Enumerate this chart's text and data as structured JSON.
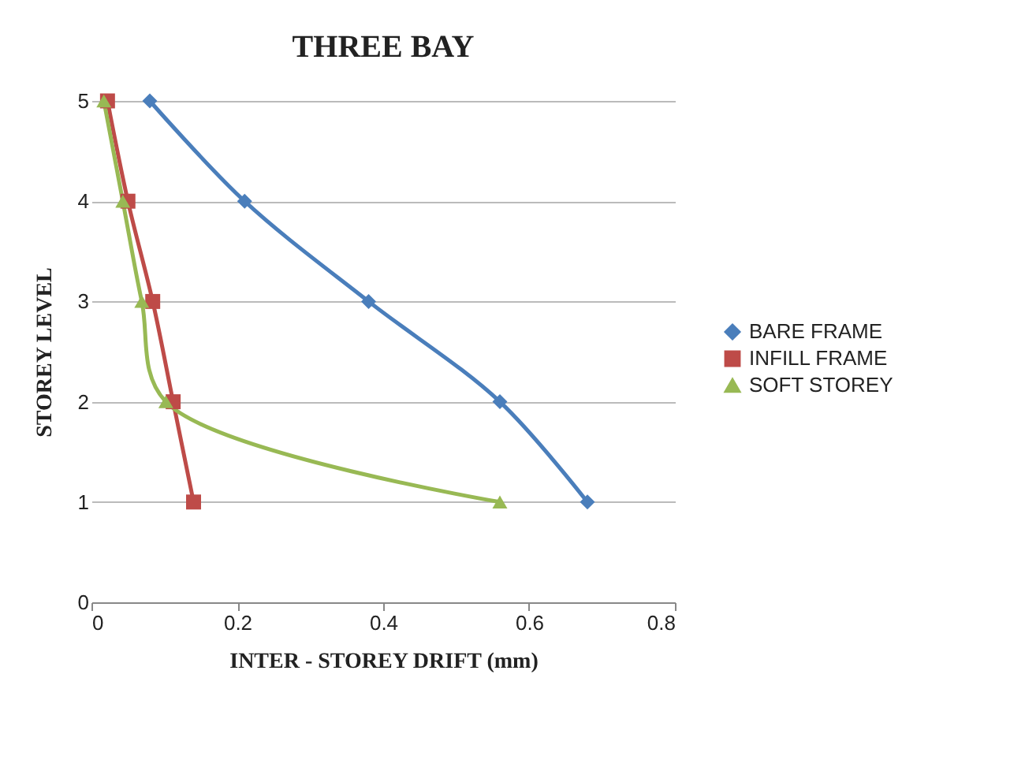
{
  "chart_data": {
    "type": "line",
    "title": "THREE BAY",
    "xlabel": "INTER - STOREY DRIFT (mm)",
    "ylabel": "STOREY LEVEL",
    "xlim": [
      0,
      0.8
    ],
    "xticks": [
      0,
      0.2,
      0.4,
      0.6,
      0.8
    ],
    "ylim": [
      0,
      5
    ],
    "yticks": [
      0,
      1,
      2,
      3,
      4,
      5
    ],
    "grid": "y",
    "legend": "right",
    "series": [
      {
        "name": "BARE FRAME",
        "color": "#4a7ebb",
        "marker": "diamond",
        "x": [
          0.08,
          0.21,
          0.38,
          0.56,
          0.68
        ],
        "values": [
          5,
          4,
          3,
          2,
          1
        ]
      },
      {
        "name": "INFILL FRAME",
        "color": "#be4b48",
        "marker": "square",
        "x": [
          0.022,
          0.05,
          0.084,
          0.112,
          0.14
        ],
        "values": [
          5,
          4,
          3,
          2,
          1
        ]
      },
      {
        "name": "SOFT STOREY",
        "color": "#98b954",
        "marker": "triangle",
        "x": [
          0.017,
          0.043,
          0.069,
          0.102,
          0.56
        ],
        "values": [
          5,
          4,
          3,
          2,
          1
        ]
      }
    ]
  }
}
